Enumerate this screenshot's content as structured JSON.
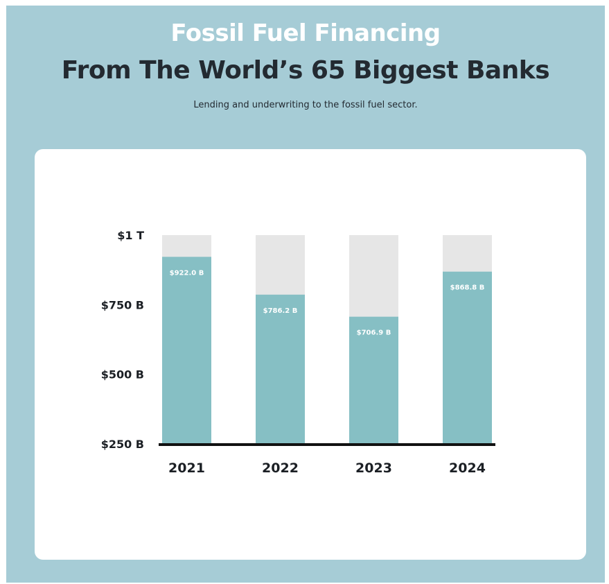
{
  "header": {
    "title": "Fossil Fuel Financing",
    "subtitle": "From The World’s 65 Biggest Banks",
    "description": "Lending and underwriting to the fossil fuel sector."
  },
  "colors": {
    "background": "#a6ccd6",
    "bar_fill": "#86bfc4",
    "bar_track": "#e6e6e6",
    "title_white": "#ffffff",
    "title_dark": "#232a31"
  },
  "chart_data": {
    "type": "bar",
    "categories": [
      "2021",
      "2022",
      "2023",
      "2024"
    ],
    "values": [
      922.0,
      786.2,
      706.9,
      868.8
    ],
    "data_labels": [
      "$922.0 B",
      "$786.2 B",
      "$706.9 B",
      "$868.8 B"
    ],
    "ylim": [
      250,
      1000
    ],
    "yticks": [
      250,
      500,
      750,
      1000
    ],
    "ytick_labels": [
      "$250 B",
      "$500 B",
      "$750 B",
      "$1 T"
    ],
    "units": "billion USD",
    "xlabel": "",
    "ylabel": "",
    "grid": false,
    "legend": "none"
  }
}
